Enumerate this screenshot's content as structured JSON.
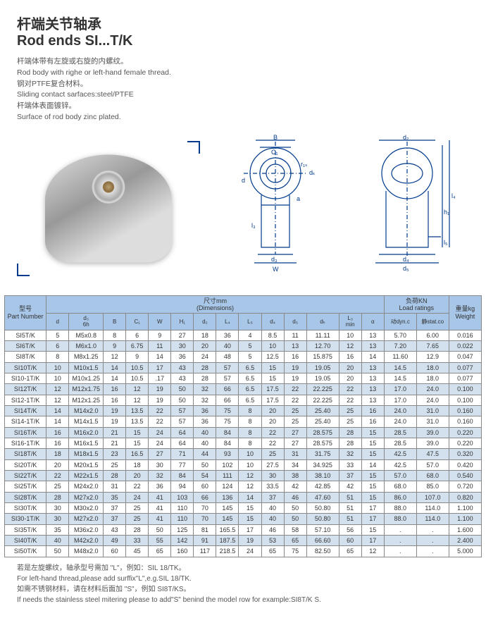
{
  "title_cn": "杆端关节轴承",
  "title_en": "Rod ends SI...T/K",
  "desc": [
    "杆端体带有左旋或右旋的内螺纹。",
    "Rod body with righe or left-hand female thread.",
    "钢对PTFE复合材料。",
    "Sliding contact sarfaces:steel/PTFE",
    "杆端体表面镀锌。",
    "Surface of rod body zinc plated."
  ],
  "table": {
    "group_part": "型号\nPart Number",
    "group_dim": "尺寸mm\n(Dimensions)",
    "group_load": "负荷KN\nLoad ratings",
    "group_weight": "重量kg\nWeight",
    "cols": [
      "d",
      "d₃\n6h",
      "B",
      "C₁",
      "W",
      "H₁",
      "d₂",
      "L₄",
      "L₅",
      "d₄",
      "d₅",
      "dₖ",
      "L₃\nmin",
      "α",
      "动dyn.c",
      "静stat.co"
    ],
    "rows": [
      [
        "SI5T/K",
        "5",
        "M5x0.8",
        "8",
        "6",
        "9",
        "27",
        "18",
        "36",
        "4",
        "8.5",
        "11",
        "11.11",
        "10",
        "13",
        "5.70",
        "6.00",
        "0.016"
      ],
      [
        "SI6T/K",
        "6",
        "M6x1.0",
        "9",
        "6.75",
        "11",
        "30",
        "20",
        "40",
        "5",
        "10",
        "13",
        "12.70",
        "12",
        "13",
        "7.20",
        "7.65",
        "0.022"
      ],
      [
        "SI8T/K",
        "8",
        "M8x1.25",
        "12",
        "9",
        "14",
        "36",
        "24",
        "48",
        "5",
        "12.5",
        "16",
        "15.875",
        "16",
        "14",
        "11.60",
        "12.9",
        "0.047"
      ],
      [
        "SI10T/K",
        "10",
        "M10x1.5",
        "14",
        "10.5",
        "17",
        "43",
        "28",
        "57",
        "6.5",
        "15",
        "19",
        "19.05",
        "20",
        "13",
        "14.5",
        "18.0",
        "0.077"
      ],
      [
        "SI10-1T/K",
        "10",
        "M10x1.25",
        "14",
        "10.5",
        ".17",
        "43",
        "28",
        "57",
        "6.5",
        "15",
        "19",
        "19.05",
        "20",
        "13",
        "14.5",
        "18.0",
        "0.077"
      ],
      [
        "SI12T/K",
        "12",
        "M12x1.75",
        "16",
        "12",
        "19",
        "50",
        "32",
        "66",
        "6.5",
        "17.5",
        "22",
        "22.225",
        "22",
        "13",
        "17.0",
        "24.0",
        "0.100"
      ],
      [
        "SI12-1T/K",
        "12",
        "M12x1.25",
        "16",
        "12",
        "19",
        "50",
        "32",
        "66",
        "6.5",
        "17.5",
        "22",
        "22.225",
        "22",
        "13",
        "17.0",
        "24.0",
        "0.100"
      ],
      [
        "SI14T/K",
        "14",
        "M14x2.0",
        "19",
        "13.5",
        "22",
        "57",
        "36",
        "75",
        "8",
        "20",
        "25",
        "25.40",
        "25",
        "16",
        "24.0",
        "31.0",
        "0.160"
      ],
      [
        "SI14-1T/K",
        "14",
        "M14x1.5",
        "19",
        "13.5",
        "22",
        "57",
        "36",
        "75",
        "8",
        "20",
        "25",
        "25.40",
        "25",
        "16",
        "24.0",
        "31.0",
        "0.160"
      ],
      [
        "SI16T/K",
        "16",
        "M16x2.0",
        "21",
        "15",
        "24",
        "64",
        "40",
        "84",
        "8",
        "22",
        "27",
        "28.575",
        "28",
        "15",
        "28.5",
        "39.0",
        "0.220"
      ],
      [
        "SI16-1T/K",
        "16",
        "M16x1.5",
        "21",
        "15",
        "24",
        "64",
        "40",
        "84",
        "8",
        "22",
        "27",
        "28.575",
        "28",
        "15",
        "28.5",
        "39.0",
        "0.220"
      ],
      [
        "SI18T/K",
        "18",
        "M18x1.5",
        "23",
        "16.5",
        "27",
        "71",
        "44",
        "93",
        "10",
        "25",
        "31",
        "31.75",
        "32",
        "15",
        "42.5",
        "47.5",
        "0.320"
      ],
      [
        "SI20T/K",
        "20",
        "M20x1.5",
        "25",
        "18",
        "30",
        "77",
        "50",
        "102",
        "10",
        "27.5",
        "34",
        "34.925",
        "33",
        "14",
        "42.5",
        "57.0",
        "0.420"
      ],
      [
        "SI22T/K",
        "22",
        "M22x1.5",
        "28",
        "20",
        "32",
        "84",
        "54",
        "111",
        "12",
        "30",
        "38",
        "38.10",
        "37",
        "15",
        "57.0",
        "68.0",
        "0.540"
      ],
      [
        "SI25T/K",
        "25",
        "M24x2.0",
        "31",
        "22",
        "36",
        "94",
        "60",
        "124",
        "12",
        "33.5",
        "42",
        "42.85",
        "42",
        "15",
        "68.0",
        "85.0",
        "0.720"
      ],
      [
        "SI28T/K",
        "28",
        "M27x2.0",
        "35",
        "24",
        "41",
        "103",
        "66",
        "136",
        "14",
        "37",
        "46",
        "47.60",
        "51",
        "15",
        "86.0",
        "107.0",
        "0.820"
      ],
      [
        "SI30T/K",
        "30",
        "M30x2.0",
        "37",
        "25",
        "41",
        "110",
        "70",
        "145",
        "15",
        "40",
        "50",
        "50.80",
        "51",
        "17",
        "88.0",
        "114.0",
        "1.100"
      ],
      [
        "SI30-1T/K",
        "30",
        "M27x2.0",
        "37",
        "25",
        "41",
        "110",
        "70",
        "145",
        "15",
        "40",
        "50",
        "50.80",
        "51",
        "17",
        "88.0",
        "114.0",
        "1.100"
      ],
      [
        "SI35T/K",
        "35",
        "M36x2.0",
        "43",
        "28",
        "50",
        "125",
        "81",
        "165.5",
        "17",
        "46",
        "58",
        "57.10",
        "56",
        "15",
        ".",
        ".",
        "1.600"
      ],
      [
        "SI40T/K",
        "40",
        "M42x2.0",
        "49",
        "33",
        "55",
        "142",
        "91",
        "187.5",
        "19",
        "53",
        "65",
        "66.60",
        "60",
        "17",
        ".",
        ".",
        "2.400"
      ],
      [
        "SI50T/K",
        "50",
        "M48x2.0",
        "60",
        "45",
        "65",
        "160",
        "117",
        "218.5",
        "24",
        "65",
        "75",
        "82.50",
        "65",
        "12",
        ".",
        ".",
        "5.000"
      ]
    ]
  },
  "footer": [
    "若是左旋螺纹，轴承型号需加 \"L\"，例如：SIL 18/TK。",
    "For left-hand thread,please add surffix\"L\",e.g.SIL 18/TK.",
    "如需不锈钢材料，请在材料后面加 \"S\"，例如 SI8T/KS。",
    "If needs the stainless steel mitering please to add\"S\" benind the model row for example:SI8T/K S."
  ],
  "diagram_labels": {
    "B": "B",
    "C1": "C₁",
    "d": "d",
    "r1s": "r₁ₛ",
    "dk": "dₖ",
    "a": "a",
    "l3": "l₃",
    "d3": "d₃",
    "W": "W",
    "d2": "d₂",
    "l4": "l₄",
    "h1": "h₁",
    "l5": "l₅",
    "d4": "d₄",
    "d5": "d₅"
  },
  "colors": {
    "header_bg": "#a7c6e8",
    "row_alt": "#d3e1ef",
    "ink": "#003A8C",
    "text": "#333333"
  }
}
